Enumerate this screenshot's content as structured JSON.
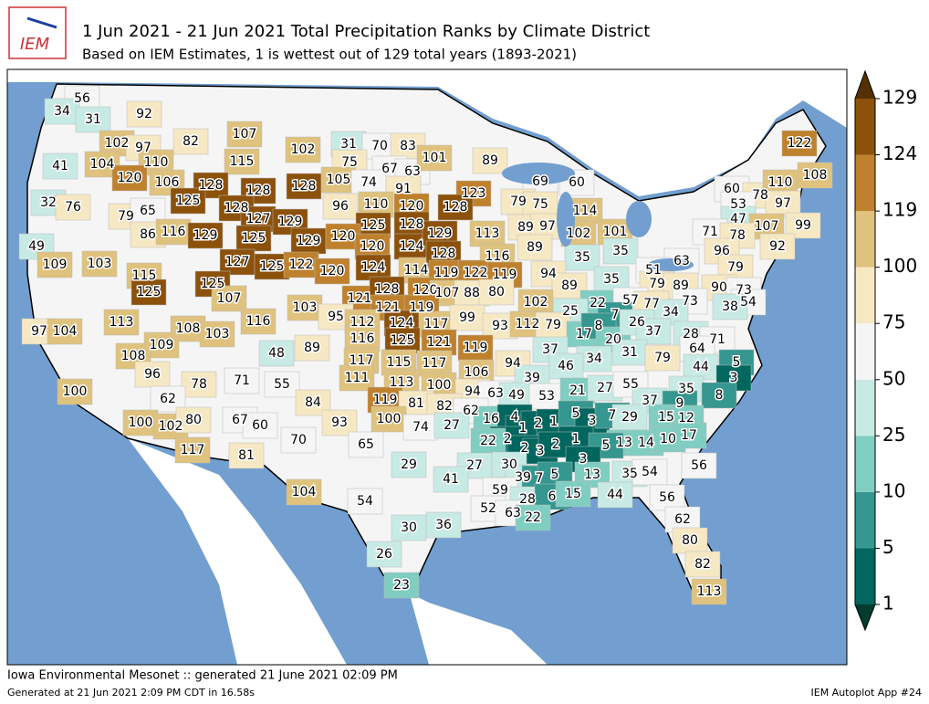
{
  "header": {
    "logo": "IEM",
    "title": "1 Jun 2021 - 21 Jun 2021 Total Precipitation Ranks by Climate District",
    "subtitle": "Based on IEM Estimates, 1 is wettest out of 129 total years (1893-2021)"
  },
  "map": {
    "labels": [
      56,
      34,
      31,
      92,
      102,
      97,
      82,
      107,
      102,
      31,
      70,
      83,
      41,
      104,
      110,
      115,
      75,
      67,
      63,
      101,
      89,
      120,
      106,
      128,
      128,
      128,
      105,
      74,
      91,
      123,
      69,
      60,
      122,
      108,
      32,
      76,
      125,
      128,
      96,
      110,
      120,
      128,
      79,
      75,
      114,
      60,
      78,
      110,
      97,
      79,
      65,
      127,
      129,
      125,
      128,
      113,
      89,
      97,
      53,
      47,
      107,
      99,
      86,
      116,
      129,
      125,
      129,
      120,
      120,
      124,
      129,
      102,
      101,
      71,
      78,
      92,
      49,
      109,
      103,
      115,
      127,
      125,
      122,
      120,
      124,
      114,
      128,
      116,
      89,
      35,
      35,
      96,
      63,
      51,
      79,
      119,
      122,
      119,
      94,
      125,
      125,
      107,
      121,
      128,
      120,
      107,
      88,
      80,
      89,
      35,
      79,
      89,
      90,
      73,
      54,
      113,
      116,
      103,
      121,
      119,
      102,
      22,
      57,
      77,
      73,
      38,
      95,
      112,
      124,
      117,
      99,
      25,
      7,
      34,
      97,
      104,
      108,
      103,
      116,
      125,
      121,
      93,
      112,
      79,
      17,
      8,
      20,
      26,
      37,
      28,
      71,
      109,
      108,
      48,
      89,
      119,
      64,
      117,
      115,
      117,
      94,
      37,
      34,
      31,
      79,
      5,
      44,
      96,
      78,
      71,
      55,
      111,
      106,
      46,
      39,
      3,
      113,
      100,
      94,
      63,
      49,
      53,
      21,
      27,
      55,
      35,
      8,
      100,
      84,
      62,
      119,
      81,
      82,
      62,
      37,
      9,
      16,
      4,
      1,
      2,
      1,
      5,
      3,
      7,
      29,
      15,
      12,
      67,
      60,
      100,
      102,
      80,
      93,
      100,
      74,
      27,
      2,
      22,
      1,
      13,
      14,
      10,
      17,
      70,
      65,
      5,
      2,
      3,
      2,
      3,
      117,
      81,
      29,
      27,
      30,
      56,
      41,
      39,
      7,
      5,
      13,
      35,
      54,
      104,
      59,
      28,
      6,
      15,
      44,
      56,
      54,
      52,
      63,
      22,
      62,
      30,
      36,
      80,
      26,
      82,
      23,
      113
    ]
  },
  "colorbar": {
    "ticks": [
      1,
      5,
      10,
      25,
      50,
      75,
      100,
      119,
      124,
      129
    ],
    "colors": [
      "#01665e",
      "#35978f",
      "#80cdc1",
      "#c7eae5",
      "#f5f5f5",
      "#f6e8c3",
      "#dfc27d",
      "#bf812d",
      "#8c510a"
    ],
    "under": "#003c30",
    "over": "#543005"
  },
  "footer": {
    "generated": "Iowa Environmental Mesonet :: generated 21 June 2021 02:09 PM",
    "timing": "Generated at 21 Jun 2021 2:09 PM CDT in 16.58s",
    "app": "IEM Autoplot App #24"
  }
}
